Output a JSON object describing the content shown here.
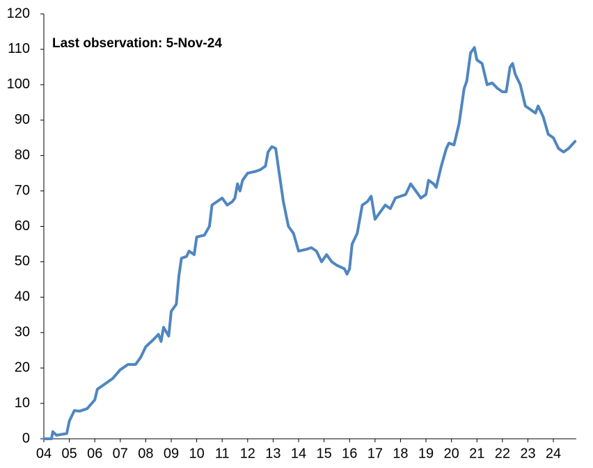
{
  "chart_data": {
    "type": "line",
    "annotation": "Last observation:   5-Nov-24",
    "x": [
      2004.0,
      2004.3,
      2004.35,
      2004.5,
      2004.9,
      2005.0,
      2005.2,
      2005.4,
      2005.7,
      2006.0,
      2006.1,
      2006.4,
      2006.7,
      2007.0,
      2007.3,
      2007.6,
      2007.8,
      2008.0,
      2008.3,
      2008.5,
      2008.6,
      2008.7,
      2008.9,
      2009.0,
      2009.2,
      2009.3,
      2009.4,
      2009.6,
      2009.7,
      2009.9,
      2010.0,
      2010.3,
      2010.5,
      2010.6,
      2010.8,
      2011.0,
      2011.2,
      2011.4,
      2011.5,
      2011.6,
      2011.7,
      2011.8,
      2012.0,
      2012.3,
      2012.5,
      2012.7,
      2012.8,
      2012.95,
      2013.1,
      2013.2,
      2013.4,
      2013.6,
      2013.8,
      2014.0,
      2014.3,
      2014.5,
      2014.7,
      2014.9,
      2015.1,
      2015.3,
      2015.5,
      2015.8,
      2015.9,
      2016.0,
      2016.1,
      2016.3,
      2016.5,
      2016.7,
      2016.85,
      2017.0,
      2017.2,
      2017.4,
      2017.6,
      2017.8,
      2018.0,
      2018.2,
      2018.4,
      2018.6,
      2018.8,
      2019.0,
      2019.1,
      2019.3,
      2019.4,
      2019.6,
      2019.8,
      2019.9,
      2020.1,
      2020.3,
      2020.5,
      2020.6,
      2020.75,
      2020.9,
      2021.0,
      2021.2,
      2021.4,
      2021.6,
      2021.8,
      2022.0,
      2022.15,
      2022.3,
      2022.4,
      2022.5,
      2022.7,
      2022.9,
      2023.1,
      2023.3,
      2023.4,
      2023.6,
      2023.8,
      2024.0,
      2024.2,
      2024.4,
      2024.6,
      2024.85
    ],
    "series": [
      {
        "color": "#4f86c0",
        "values": [
          0,
          0,
          2,
          1,
          1.5,
          5,
          8,
          7.8,
          8.5,
          11,
          14,
          15.5,
          17,
          19.5,
          21,
          21,
          23,
          26,
          28,
          29.5,
          27.5,
          31.5,
          29,
          36,
          38,
          46,
          51,
          51.5,
          53,
          52,
          57,
          57.5,
          60,
          66,
          67,
          68,
          66,
          67,
          68,
          72,
          70,
          73,
          75,
          75.5,
          76,
          77,
          81,
          82.5,
          82,
          77,
          67,
          60,
          58,
          53,
          53.5,
          54,
          53,
          50,
          52,
          50,
          49,
          48,
          46.5,
          48,
          55,
          58,
          66,
          67,
          68.5,
          62,
          64,
          66,
          65,
          68,
          68.5,
          69,
          72,
          70,
          68,
          69,
          73,
          72,
          71,
          77,
          82,
          83.5,
          83,
          89,
          99,
          101,
          109,
          110.5,
          107,
          106,
          100,
          100.5,
          99,
          98,
          98,
          105,
          106,
          103,
          100,
          94,
          93,
          92,
          94,
          91,
          86,
          85,
          82,
          81,
          82,
          84
        ]
      }
    ],
    "xlim": [
      2004,
      2024.9
    ],
    "xticks": [
      {
        "value": 2004,
        "label": "04"
      },
      {
        "value": 2005,
        "label": "05"
      },
      {
        "value": 2006,
        "label": "06"
      },
      {
        "value": 2007,
        "label": "07"
      },
      {
        "value": 2008,
        "label": "08"
      },
      {
        "value": 2009,
        "label": "09"
      },
      {
        "value": 2010,
        "label": "10"
      },
      {
        "value": 2011,
        "label": "11"
      },
      {
        "value": 2012,
        "label": "12"
      },
      {
        "value": 2013,
        "label": "13"
      },
      {
        "value": 2014,
        "label": "14"
      },
      {
        "value": 2015,
        "label": "15"
      },
      {
        "value": 2016,
        "label": "16"
      },
      {
        "value": 2017,
        "label": "17"
      },
      {
        "value": 2018,
        "label": "18"
      },
      {
        "value": 2019,
        "label": "19"
      },
      {
        "value": 2020,
        "label": "20"
      },
      {
        "value": 2021,
        "label": "21"
      },
      {
        "value": 2022,
        "label": "22"
      },
      {
        "value": 2023,
        "label": "23"
      },
      {
        "value": 2024,
        "label": "24"
      }
    ],
    "ylim": [
      0,
      120
    ],
    "yticks": [
      0,
      10,
      20,
      30,
      40,
      50,
      60,
      70,
      80,
      90,
      100,
      110,
      120
    ]
  }
}
